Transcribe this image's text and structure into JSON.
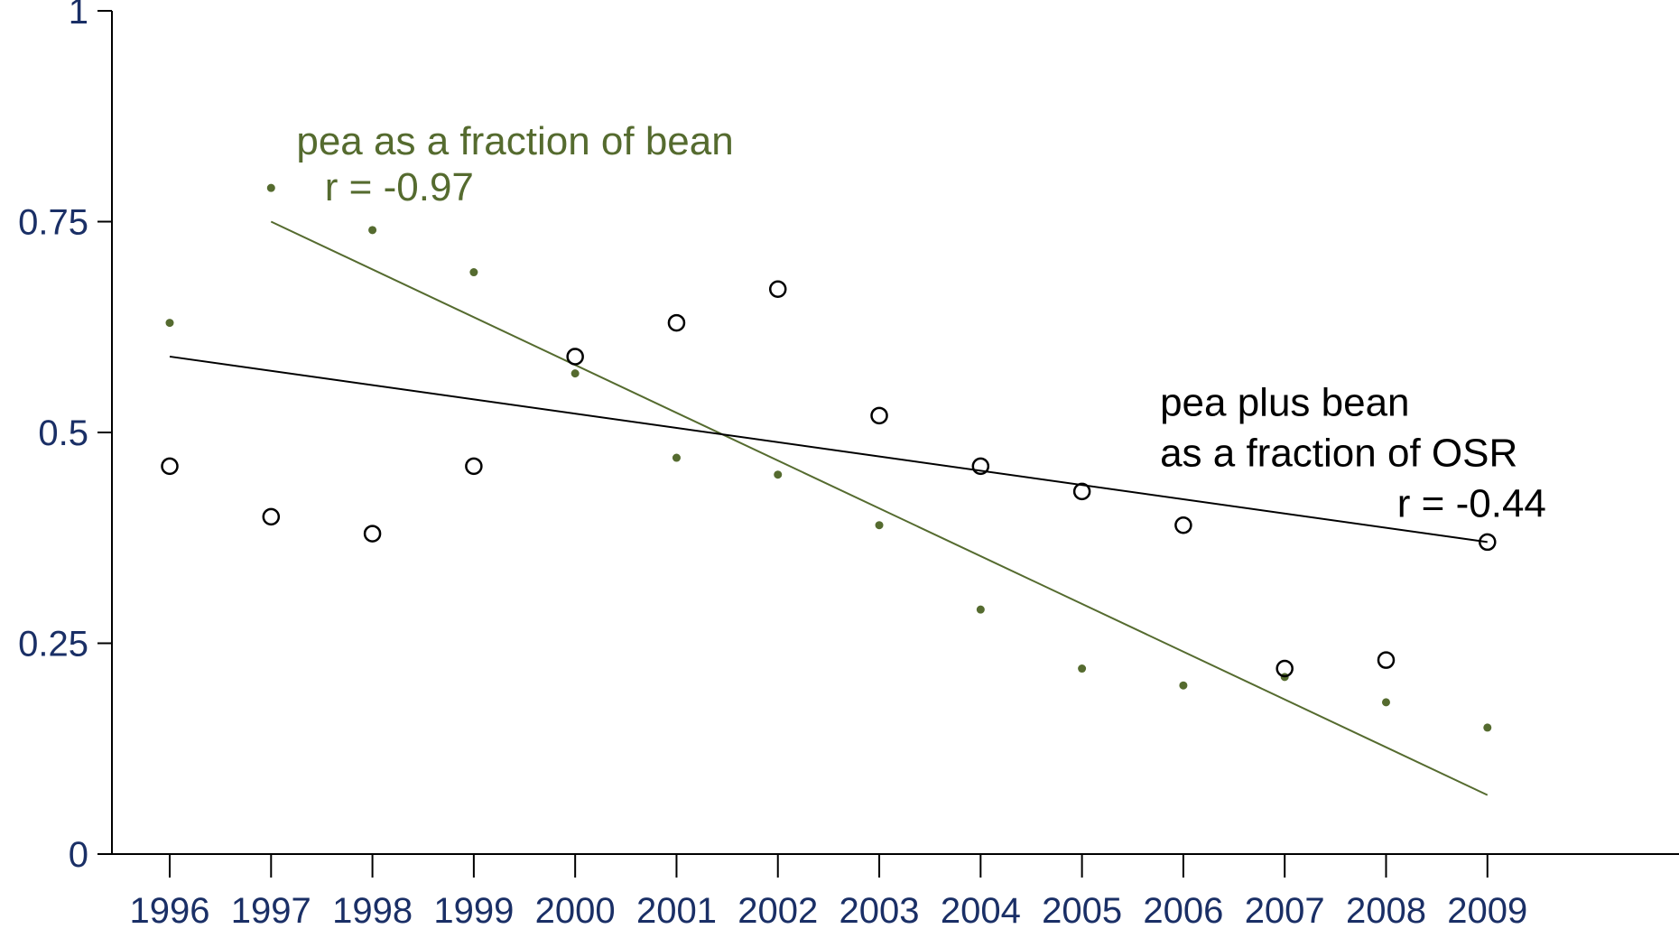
{
  "chart_data": {
    "type": "scatter",
    "x": [
      1996,
      1997,
      1998,
      1999,
      2000,
      2001,
      2002,
      2003,
      2004,
      2005,
      2006,
      2007,
      2008,
      2009
    ],
    "xlim": [
      1995.43,
      2010.89
    ],
    "ylim": [
      0,
      1
    ],
    "xticks": [
      "1996",
      "1997",
      "1998",
      "1999",
      "2000",
      "2001",
      "2002",
      "2003",
      "2004",
      "2005",
      "2006",
      "2007",
      "2008",
      "2009"
    ],
    "yticks": [
      {
        "value": 0,
        "label": "0"
      },
      {
        "value": 0.25,
        "label": "0.25"
      },
      {
        "value": 0.5,
        "label": "0.5"
      },
      {
        "value": 0.75,
        "label": "0.75"
      },
      {
        "value": 1,
        "label": "1"
      }
    ],
    "grid": false,
    "series": [
      {
        "key": "pea_bean",
        "marker": "filled-dot",
        "color": "#556b2f",
        "values": [
          0.63,
          0.79,
          0.74,
          0.69,
          0.57,
          0.47,
          0.45,
          0.39,
          0.29,
          0.22,
          0.2,
          0.21,
          0.18,
          0.15
        ],
        "trend": {
          "x": [
            1997,
            2009
          ],
          "y": [
            0.75,
            0.07
          ]
        }
      },
      {
        "key": "pea_plus_bean_osr",
        "marker": "open-circle",
        "color": "#000000",
        "values": [
          0.46,
          0.4,
          0.38,
          0.46,
          0.59,
          0.63,
          0.67,
          0.52,
          0.46,
          0.43,
          0.39,
          0.22,
          0.23,
          0.37
        ],
        "trend": {
          "x": [
            1996,
            2009
          ],
          "y": [
            0.59,
            0.37
          ]
        }
      }
    ],
    "annotations": [
      {
        "key": "pea_line1",
        "text": "pea as a fraction of bean",
        "x": 1997.25,
        "y": 0.83,
        "color": "#556b2f",
        "anchor": "start"
      },
      {
        "key": "pea_line2",
        "text": "r = -0.97",
        "x": 1997.53,
        "y": 0.775,
        "color": "#556b2f",
        "anchor": "start"
      },
      {
        "key": "osr_line1",
        "text": "pea plus bean",
        "x": 2005.77,
        "y": 0.52,
        "color": "#000000",
        "anchor": "start"
      },
      {
        "key": "osr_line2",
        "text": "as a fraction of OSR",
        "x": 2005.77,
        "y": 0.46,
        "color": "#000000",
        "anchor": "start"
      },
      {
        "key": "osr_line3",
        "text": "r = -0.44",
        "x": 2009.58,
        "y": 0.4,
        "color": "#000000",
        "anchor": "end"
      }
    ],
    "colors": {
      "axis": "#000000",
      "tick_label": "#1a2f66"
    }
  }
}
